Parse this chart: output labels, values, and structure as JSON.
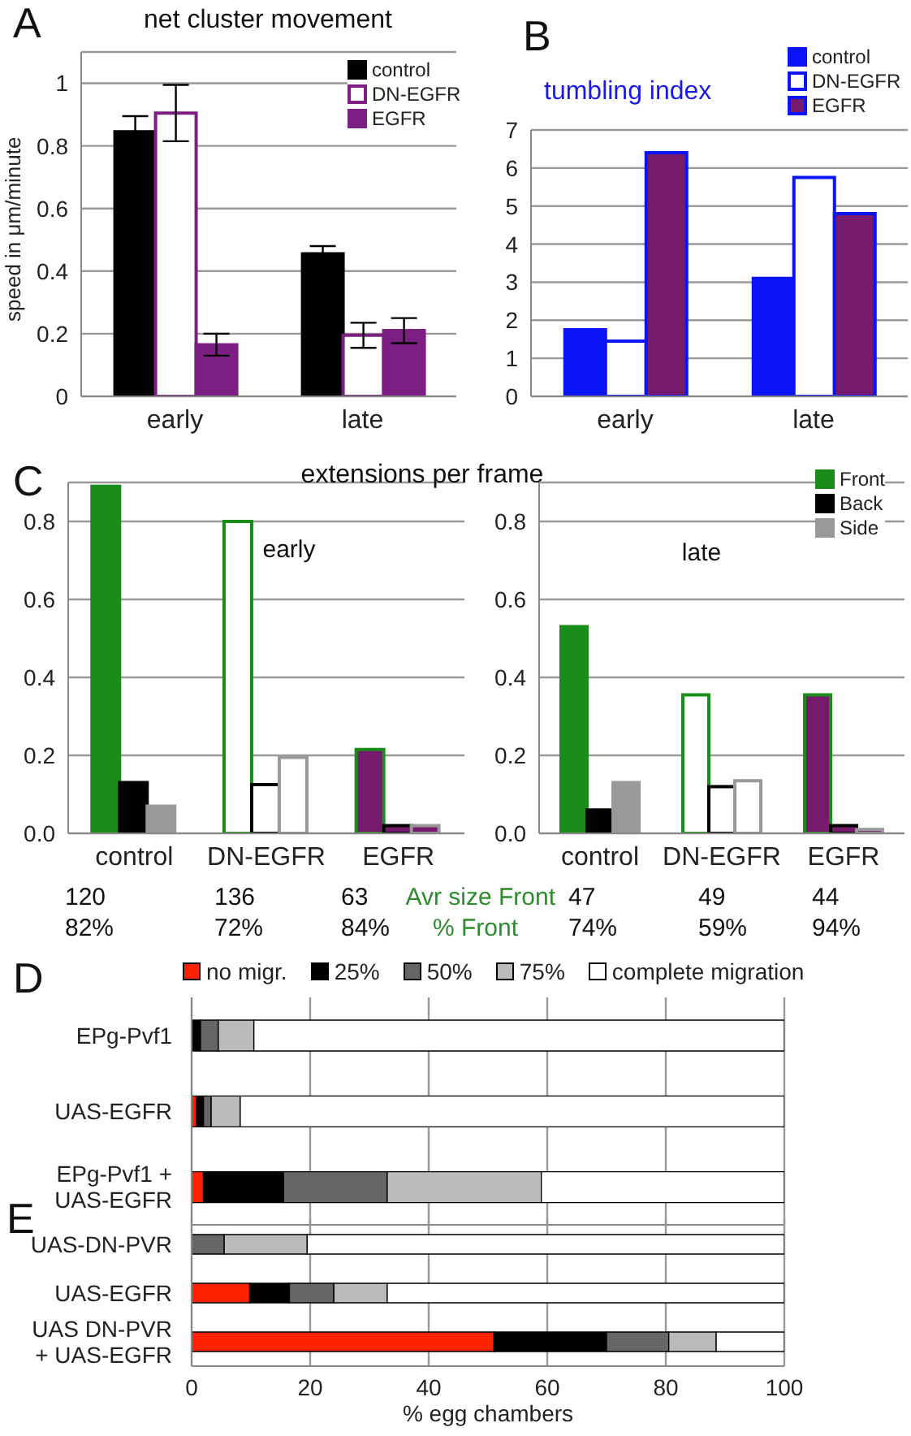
{
  "chart_data": [
    {
      "type": "bar",
      "title": "net cluster movement",
      "ylabel": "speed in μm/minute",
      "categories": [
        "early",
        "late"
      ],
      "series": [
        {
          "name": "control",
          "color": "#000000",
          "colors": [
            "#000000",
            "#000000"
          ],
          "values": [
            0.845,
            0.455
          ],
          "errors": [
            0.05,
            0.025
          ]
        },
        {
          "name": "DN-EGFR",
          "color": "#7b1f82",
          "colors": [
            "#ffffff",
            "#ffffff"
          ],
          "values": [
            0.905,
            0.195
          ],
          "errors": [
            0.09,
            0.04
          ]
        },
        {
          "name": "EGFR",
          "color": "#7b1f82",
          "colors": [
            "#7b1f82",
            "#7b1f82"
          ],
          "values": [
            0.165,
            0.21
          ],
          "errors": [
            0.035,
            0.04
          ]
        }
      ],
      "ylim": [
        0,
        1.1
      ],
      "yticks": [
        0,
        0.2,
        0.4,
        0.6,
        0.8,
        1
      ],
      "grid": "y",
      "legend": "top right",
      "annotations": [
        "A"
      ]
    },
    {
      "type": "bar",
      "title": "tumbling index",
      "categories": [
        "early",
        "late"
      ],
      "series": [
        {
          "name": "control",
          "color": "#0a14f5",
          "colors": [
            "#0a14f5",
            "#0a14f5"
          ],
          "values": [
            1.75,
            3.1
          ]
        },
        {
          "name": "DN-EGFR",
          "color": "#0a14f5",
          "colors": [
            "#ffffff",
            "#ffffff"
          ],
          "values": [
            1.45,
            5.75
          ]
        },
        {
          "name": "EGFR",
          "color": "#0a14f5",
          "colors": [
            "#761a6e",
            "#761a6e"
          ],
          "values": [
            6.4,
            4.8
          ]
        }
      ],
      "ylim": [
        0,
        7
      ],
      "yticks": [
        0,
        1,
        2,
        3,
        4,
        5,
        6,
        7
      ],
      "grid": "y",
      "legend": "top right",
      "annotations": [
        "B"
      ]
    },
    {
      "type": "bar",
      "title": "extensions per frame",
      "categories": [
        "control",
        "DN-EGFR",
        "EGFR"
      ],
      "series": [
        {
          "color": "#1a8c1a",
          "colors": [
            "#1a8c1a",
            "#ffffff",
            "#761a6e"
          ],
          "values": [
            0.89,
            0.8,
            0.215
          ]
        },
        {
          "color": "#000000",
          "colors": [
            "#000000",
            "#ffffff",
            "#761a6e"
          ],
          "values": [
            0.13,
            0.125,
            0.02
          ]
        },
        {
          "color": "#999999",
          "colors": [
            "#999999",
            "#ffffff",
            "#761a6e"
          ],
          "values": [
            0.07,
            0.195,
            0.02
          ]
        }
      ],
      "ylim": [
        0,
        0.9
      ],
      "yticks": [
        {
          "value": 0,
          "label": "0.0"
        },
        0.2,
        0.4,
        0.6,
        0.8
      ],
      "grid": "y",
      "annotations": [
        "C",
        "early",
        "120",
        "136",
        "63",
        "82%",
        "72%",
        "84%"
      ]
    },
    {
      "type": "bar",
      "categories": [
        "control",
        "DN-EGFR",
        "EGFR"
      ],
      "series": [
        {
          "name": "Front",
          "color": "#1a8c1a",
          "colors": [
            "#1a8c1a",
            "#ffffff",
            "#761a6e"
          ],
          "values": [
            0.53,
            0.355,
            0.355
          ]
        },
        {
          "name": "Back",
          "color": "#000000",
          "colors": [
            "#000000",
            "#ffffff",
            "#761a6e"
          ],
          "values": [
            0.06,
            0.12,
            0.02
          ]
        },
        {
          "name": "Side",
          "color": "#999999",
          "colors": [
            "#999999",
            "#ffffff",
            "#761a6e"
          ],
          "values": [
            0.13,
            0.135,
            0.01
          ]
        }
      ],
      "ylim": [
        0,
        0.9
      ],
      "yticks": [
        {
          "value": 0,
          "label": "0.0"
        },
        0.2,
        0.4,
        0.6,
        0.8
      ],
      "grid": "y",
      "legend": "top right",
      "annotations": [
        "late",
        "Avr size Front",
        "% Front",
        "47",
        "49",
        "44",
        "74%",
        "59%",
        "94%"
      ]
    },
    {
      "type": "bar",
      "orientation": "horizontal",
      "stacked": true,
      "categories": [
        "EPg-Pvf1",
        "UAS-EGFR",
        "EPg-Pvf1 + UAS-EGFR"
      ],
      "series": [
        {
          "name": "no migr.",
          "color": "#ff2200",
          "values": [
            0,
            0.8,
            2
          ]
        },
        {
          "name": "25%",
          "color": "#000000",
          "values": [
            1.5,
            1.2,
            13.5
          ]
        },
        {
          "name": "50%",
          "color": "#666666",
          "values": [
            3,
            1.3,
            17.5
          ]
        },
        {
          "name": "75%",
          "color": "#bbbbbb",
          "values": [
            6,
            4.9,
            26
          ]
        },
        {
          "name": "complete migration",
          "color": "#ffffff",
          "values": [
            89.5,
            91.8,
            41
          ]
        }
      ],
      "xlim": [
        0,
        100
      ],
      "xticks": [
        0,
        20,
        40,
        60,
        80,
        100
      ],
      "grid": "x",
      "legend": "top",
      "tick_labels": "y",
      "annotations": [
        "D"
      ]
    },
    {
      "type": "bar",
      "orientation": "horizontal",
      "stacked": true,
      "categories": [
        "UAS-DN-PVR",
        "UAS-EGFR",
        "UAS DN-PVR + UAS-EGFR"
      ],
      "xlabel": "% egg chambers",
      "series": [
        {
          "color": "#ff2200",
          "values": [
            0,
            9.8,
            51
          ]
        },
        {
          "color": "#000000",
          "values": [
            0,
            6.7,
            19
          ]
        },
        {
          "color": "#666666",
          "values": [
            5.5,
            7.5,
            10.5
          ]
        },
        {
          "color": "#bbbbbb",
          "values": [
            14,
            9,
            8
          ]
        },
        {
          "color": "#ffffff",
          "values": [
            80.5,
            67,
            11.5
          ]
        }
      ],
      "xlim": [
        0,
        100
      ],
      "xticks": [
        0,
        20,
        40,
        60,
        80,
        100
      ],
      "grid": "x",
      "annotations": [
        "E"
      ]
    }
  ]
}
